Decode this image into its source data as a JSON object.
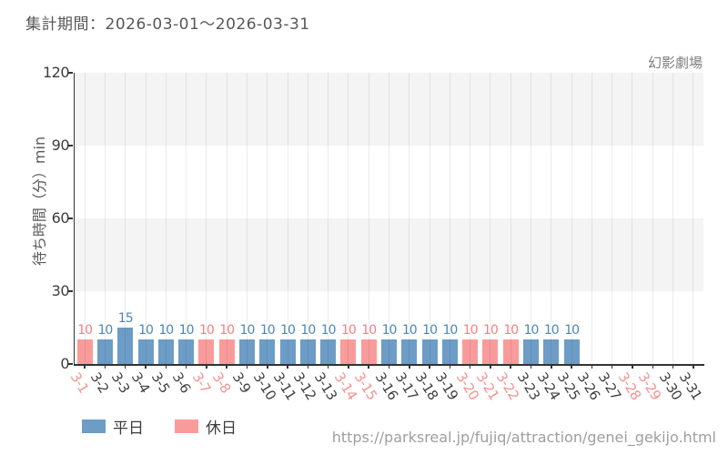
{
  "header": {
    "title": "集計期間：2026-03-01～2026-03-31"
  },
  "chart": {
    "attraction_name": "幻影劇場",
    "y_axis_title": "待ち時間（分）min"
  },
  "legend": {
    "weekday": {
      "label": "平日",
      "color": "#6d9cc6"
    },
    "holiday": {
      "label": "休日",
      "color": "#f99b9b"
    }
  },
  "footer": {
    "url": "https://parksreal.jp/fujiq/attraction/genei_gekijo.html"
  },
  "chart_data": {
    "type": "bar",
    "title": "集計期間：2026-03-01～2026-03-31",
    "attraction": "幻影劇場",
    "xlabel": "",
    "ylabel": "待ち時間（分）min",
    "ylim": [
      0,
      120
    ],
    "yticks": [
      0,
      30,
      60,
      90,
      120
    ],
    "grid": "vertical gridline per day; horizontal alternating gray/white bands every 30",
    "legend_position": "bottom-left",
    "categories": [
      "3-1",
      "3-2",
      "3-3",
      "3-4",
      "3-5",
      "3-6",
      "3-7",
      "3-8",
      "3-9",
      "3-10",
      "3-11",
      "3-12",
      "3-13",
      "3-14",
      "3-15",
      "3-16",
      "3-17",
      "3-18",
      "3-19",
      "3-20",
      "3-21",
      "3-22",
      "3-23",
      "3-24",
      "3-25",
      "3-26",
      "3-27",
      "3-28",
      "3-29",
      "3-30",
      "3-31"
    ],
    "values": [
      10,
      10,
      15,
      10,
      10,
      10,
      10,
      10,
      10,
      10,
      10,
      10,
      10,
      10,
      10,
      10,
      10,
      10,
      10,
      10,
      10,
      10,
      10,
      10,
      10,
      null,
      null,
      null,
      null,
      null,
      null
    ],
    "day_types": [
      "holiday",
      "weekday",
      "weekday",
      "weekday",
      "weekday",
      "weekday",
      "holiday",
      "holiday",
      "weekday",
      "weekday",
      "weekday",
      "weekday",
      "weekday",
      "holiday",
      "holiday",
      "weekday",
      "weekday",
      "weekday",
      "weekday",
      "holiday",
      "holiday",
      "holiday",
      "weekday",
      "weekday",
      "weekday",
      "weekday",
      "weekday",
      "holiday",
      "holiday",
      "weekday",
      "weekday"
    ],
    "series": [
      {
        "name": "平日",
        "color": "#6d9cc6",
        "days": [
          "3-2",
          "3-3",
          "3-4",
          "3-5",
          "3-6",
          "3-9",
          "3-10",
          "3-11",
          "3-12",
          "3-13",
          "3-16",
          "3-17",
          "3-18",
          "3-19",
          "3-23",
          "3-24",
          "3-25"
        ]
      },
      {
        "name": "休日",
        "color": "#f99b9b",
        "days": [
          "3-1",
          "3-7",
          "3-8",
          "3-14",
          "3-15",
          "3-20",
          "3-21",
          "3-22"
        ]
      }
    ],
    "colors": {
      "weekday": {
        "bar": "#6d9cc6",
        "value_label": "#4c86b6",
        "tick_label": "#3f3f3f"
      },
      "holiday": {
        "bar": "#f99b9b",
        "value_label": "#f08282",
        "tick_label": "#f39292"
      }
    }
  }
}
